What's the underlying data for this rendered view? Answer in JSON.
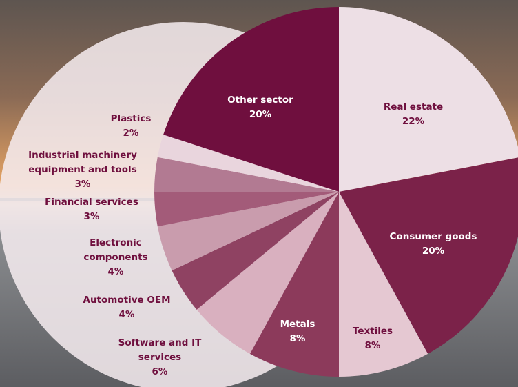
{
  "chart_data": {
    "type": "pie",
    "categories": [
      "Real estate",
      "Consumer goods",
      "Textiles",
      "Metals",
      "Software and IT services",
      "Automotive OEM",
      "Electronic components",
      "Financial services",
      "Industrial machinery equipment and tools",
      "Plastics",
      "Other sector"
    ],
    "values": [
      22,
      20,
      8,
      8,
      6,
      4,
      4,
      3,
      3,
      2,
      20
    ],
    "value_labels": [
      "22%",
      "20%",
      "8%",
      "8%",
      "6%",
      "4%",
      "4%",
      "3%",
      "3%",
      "2%",
      "20%"
    ],
    "colors": [
      "#eddfe5",
      "#7b2249",
      "#e5c8d2",
      "#8c3a5b",
      "#d9b0bf",
      "#8f4262",
      "#c99cad",
      "#a35b79",
      "#b27a92",
      "#e9d5dd",
      "#6f0f3e"
    ]
  }
}
